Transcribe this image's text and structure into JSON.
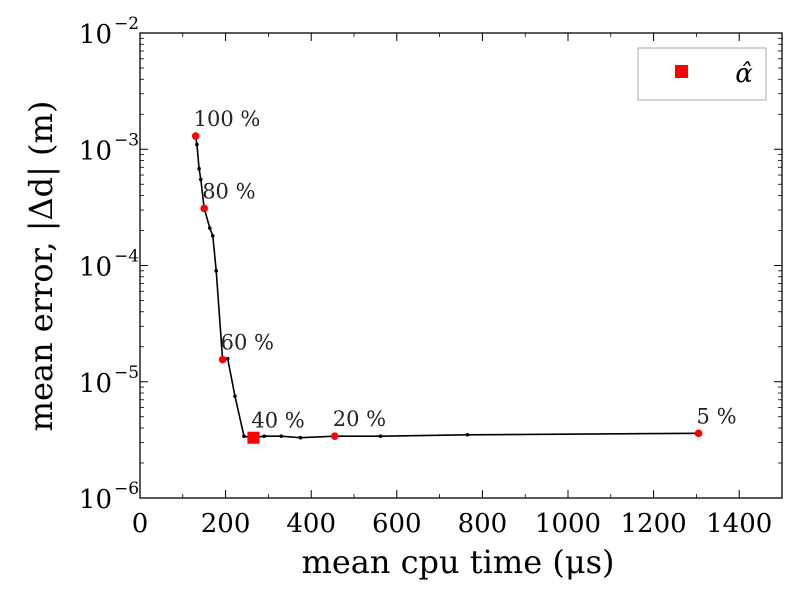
{
  "chart_data": {
    "type": "line",
    "xlabel": "mean cpu time (μs)",
    "ylabel": "mean error, |Δd| (m)",
    "xlim": [
      0,
      1500
    ],
    "ylim": [
      1e-06,
      0.01
    ],
    "yscale": "log",
    "x_ticks": [
      0,
      200,
      400,
      600,
      800,
      1000,
      1200,
      1400
    ],
    "x_tick_labels": [
      "0",
      "200",
      "400",
      "600",
      "800",
      "1000",
      "1200",
      "1400"
    ],
    "y_ticks": [
      {
        "value": 1e-06,
        "base": "10",
        "exp": "−6"
      },
      {
        "value": 1e-05,
        "base": "10",
        "exp": "−5"
      },
      {
        "value": 0.0001,
        "base": "10",
        "exp": "−4"
      },
      {
        "value": 0.001,
        "base": "10",
        "exp": "−3"
      },
      {
        "value": 0.01,
        "base": "10",
        "exp": "−2"
      }
    ],
    "series": [
      {
        "name": "curve",
        "color": "#000000",
        "x": [
          130,
          133,
          138,
          142,
          150,
          163,
          170,
          178,
          193,
          205,
          222,
          243,
          260,
          290,
          330,
          375,
          455,
          562,
          765,
          1305
        ],
        "y": [
          0.0013,
          0.0011,
          0.00068,
          0.00055,
          0.00031,
          0.00021,
          0.00018,
          9e-05,
          1.55e-05,
          1.58e-05,
          7.5e-06,
          3.4e-06,
          3.3e-06,
          3.4e-06,
          3.4e-06,
          3.3e-06,
          3.4e-06,
          3.4e-06,
          3.5e-06,
          3.6e-06
        ]
      }
    ],
    "highlighted_points": [
      {
        "label": "100 %",
        "x": 130,
        "y": 0.0013,
        "color": "#ff0000"
      },
      {
        "label": "80 %",
        "x": 150,
        "y": 0.00031,
        "color": "#ff0000"
      },
      {
        "label": "60 %",
        "x": 193,
        "y": 1.55e-05,
        "color": "#ff0000"
      },
      {
        "label": "40 %",
        "x": 265,
        "y": 3.3e-06,
        "color": "#ff0000"
      },
      {
        "label": "20 %",
        "x": 455,
        "y": 3.4e-06,
        "color": "#ff0000"
      },
      {
        "label": "5 %",
        "x": 1305,
        "y": 3.6e-06,
        "color": "#ff0000"
      }
    ],
    "alpha_hat_point": {
      "x": 265,
      "y": 3.3e-06,
      "color": "#ff0000",
      "marker": "square"
    },
    "legend": {
      "position": "top-right",
      "entries": [
        {
          "label": "α̂",
          "marker": "square",
          "color": "#ff0000"
        }
      ]
    }
  }
}
